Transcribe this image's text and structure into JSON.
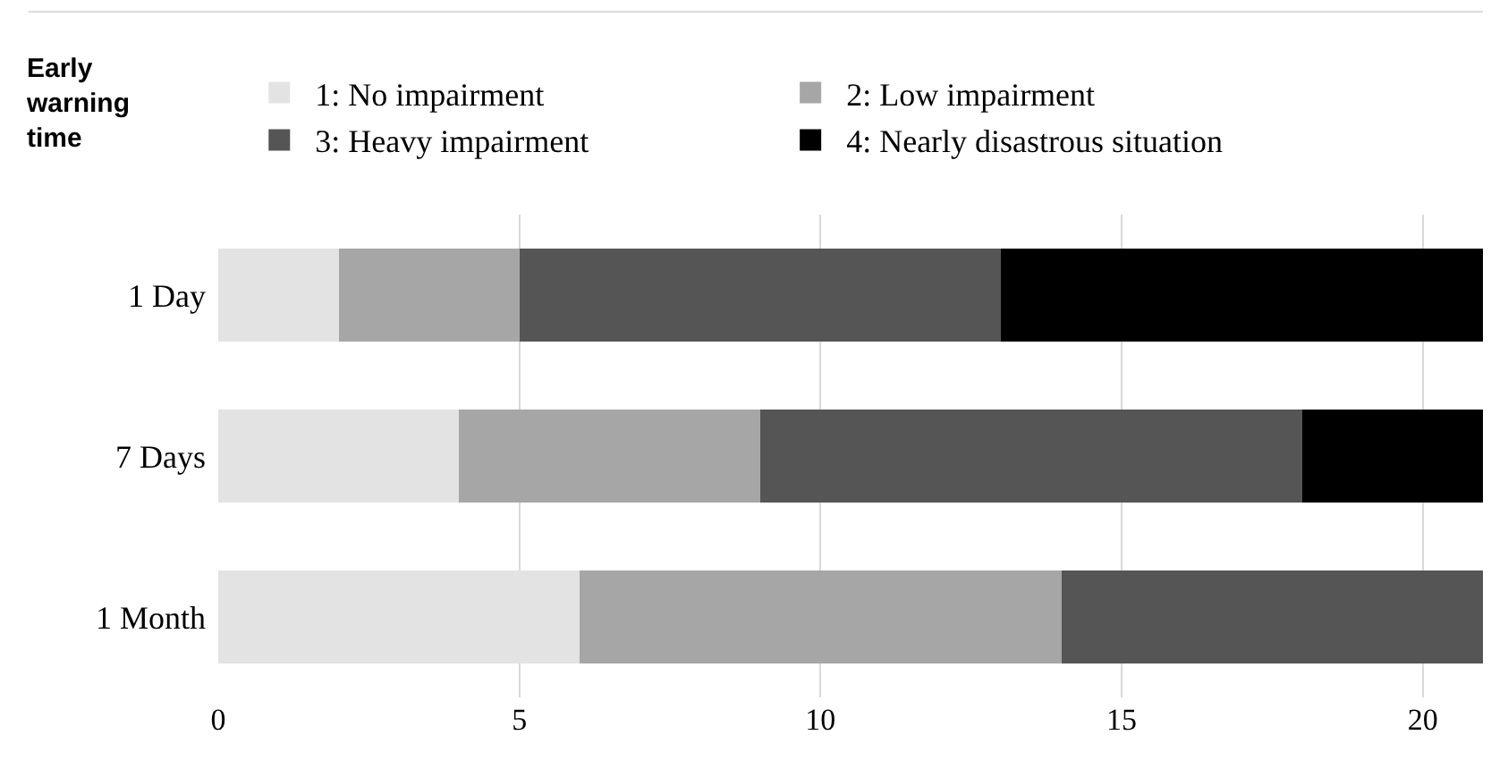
{
  "chart_data": {
    "type": "bar",
    "orientation": "horizontal",
    "stacked": true,
    "ylabel": "Early warning time",
    "categories": [
      "1 Day",
      "7 Days",
      "1 Month"
    ],
    "series": [
      {
        "name": "1: No impairment",
        "color": "#e3e3e3",
        "values": [
          2,
          4,
          6
        ]
      },
      {
        "name": "2: Low impairment",
        "color": "#a6a6a6",
        "values": [
          3,
          5,
          8
        ]
      },
      {
        "name": "3: Heavy impairment",
        "color": "#555555",
        "values": [
          8,
          9,
          7
        ]
      },
      {
        "name": "4: Nearly disastrous situation",
        "color": "#000000",
        "values": [
          8,
          3,
          0
        ]
      }
    ],
    "xlim": [
      0,
      21
    ],
    "xticks": [
      0,
      5,
      10,
      15,
      20
    ],
    "grid": "x",
    "legend": "top"
  }
}
